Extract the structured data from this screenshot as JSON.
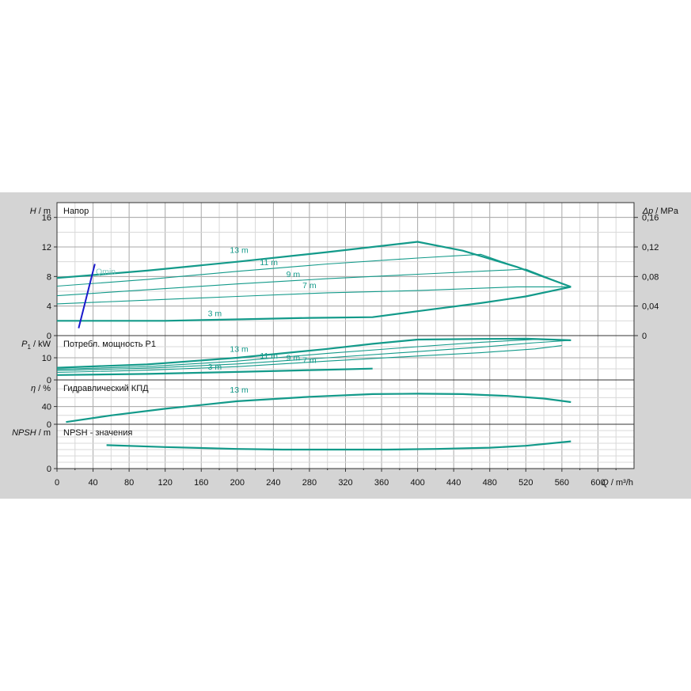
{
  "chart_data": {
    "type": "line",
    "x": {
      "label_italic": "Q",
      "label_unit": " / m³/h",
      "range": [
        0,
        640
      ],
      "ticks": [
        "0",
        "40",
        "80",
        "120",
        "160",
        "200",
        "240",
        "280",
        "320",
        "360",
        "400",
        "440",
        "480",
        "520",
        "560",
        "600"
      ]
    },
    "colors": {
      "curve": "#139a8a",
      "qmin": "#1a1acc",
      "grid": "#9a9a9a",
      "panel": "#d4d4d4",
      "plot": "#ffffff"
    },
    "panels": [
      {
        "id": "head",
        "title": "Напор",
        "ylabel_italic": "H",
        "ylabel_unit": " / m",
        "ylim": [
          0,
          18
        ],
        "ticks": [
          "0",
          "4",
          "8",
          "12",
          "16"
        ],
        "right_axis": {
          "label_italic": "Δp",
          "label_unit": " / MPa",
          "ticks": [
            "0",
            "0,04",
            "0,08",
            "0,12",
            "0,16"
          ]
        },
        "series": [
          {
            "name": "13 m",
            "weight": "bold",
            "label_at": [
              202,
              11.0
            ],
            "points": [
              [
                0,
                7.8
              ],
              [
                100,
                8.8
              ],
              [
                200,
                10.0
              ],
              [
                300,
                11.3
              ],
              [
                400,
                12.7
              ],
              [
                450,
                11.5
              ],
              [
                510,
                9.3
              ],
              [
                570,
                6.6
              ]
            ]
          },
          {
            "name": "11 m",
            "weight": "thin",
            "label_at": [
              235,
              9.3
            ],
            "points": [
              [
                0,
                6.7
              ],
              [
                100,
                7.6
              ],
              [
                200,
                8.7
              ],
              [
                300,
                9.7
              ],
              [
                400,
                10.5
              ],
              [
                470,
                11.0
              ],
              [
                510,
                9.3
              ],
              [
                570,
                6.6
              ]
            ]
          },
          {
            "name": "9 m",
            "weight": "thin",
            "label_at": [
              262,
              7.7
            ],
            "points": [
              [
                0,
                5.4
              ],
              [
                100,
                6.2
              ],
              [
                200,
                7.0
              ],
              [
                300,
                7.7
              ],
              [
                400,
                8.3
              ],
              [
                520,
                9.0
              ],
              [
                570,
                6.6
              ]
            ]
          },
          {
            "name": "7 m",
            "weight": "thin",
            "label_at": [
              280,
              6.2
            ],
            "points": [
              [
                0,
                4.3
              ],
              [
                100,
                4.8
              ],
              [
                200,
                5.3
              ],
              [
                300,
                5.8
              ],
              [
                400,
                6.1
              ],
              [
                510,
                6.6
              ],
              [
                570,
                6.6
              ]
            ]
          },
          {
            "name": "3 m",
            "weight": "bold",
            "label_at": [
              175,
              2.4
            ],
            "points": [
              [
                0,
                2.0
              ],
              [
                120,
                2.0
              ],
              [
                200,
                2.2
              ],
              [
                280,
                2.4
              ],
              [
                350,
                2.5
              ],
              [
                400,
                3.3
              ],
              [
                470,
                4.4
              ],
              [
                520,
                5.3
              ],
              [
                570,
                6.6
              ]
            ]
          }
        ],
        "qmin": {
          "label": "Qmin",
          "points": [
            [
              24,
              1.0
            ],
            [
              42,
              9.7
            ]
          ],
          "label_at": [
            43,
            8.3
          ]
        }
      },
      {
        "id": "power",
        "title": "Потребл. мощность P1",
        "ylabel_italic": "P",
        "ylabel_sub": "1",
        "ylabel_unit": " / kW",
        "ylim": [
          0,
          20
        ],
        "ticks": [
          "0",
          "10"
        ],
        "series": [
          {
            "name": "13 m",
            "weight": "bold",
            "label_at": [
              202,
              12.0
            ],
            "points": [
              [
                0,
                5.5
              ],
              [
                100,
                7.0
              ],
              [
                200,
                10.0
              ],
              [
                300,
                14.0
              ],
              [
                350,
                16.3
              ],
              [
                400,
                18.2
              ],
              [
                470,
                18.5
              ],
              [
                520,
                18.6
              ],
              [
                570,
                17.9
              ]
            ]
          },
          {
            "name": "11 m",
            "weight": "thin",
            "label_at": [
              235,
              9.0
            ],
            "points": [
              [
                0,
                4.8
              ],
              [
                100,
                6.0
              ],
              [
                200,
                8.5
              ],
              [
                300,
                12.0
              ],
              [
                400,
                15.0
              ],
              [
                470,
                17.0
              ],
              [
                530,
                18.3
              ],
              [
                570,
                17.9
              ]
            ]
          },
          {
            "name": "9 m",
            "weight": "thin",
            "label_at": [
              262,
              8.0
            ],
            "points": [
              [
                0,
                4.2
              ],
              [
                100,
                5.3
              ],
              [
                200,
                7.2
              ],
              [
                300,
                10.0
              ],
              [
                400,
                12.8
              ],
              [
                470,
                14.8
              ],
              [
                530,
                16.8
              ],
              [
                570,
                17.9
              ]
            ]
          },
          {
            "name": "7 m",
            "weight": "thin",
            "label_at": [
              280,
              7.0
            ],
            "points": [
              [
                0,
                3.4
              ],
              [
                100,
                4.4
              ],
              [
                200,
                6.0
              ],
              [
                300,
                8.5
              ],
              [
                400,
                10.8
              ],
              [
                470,
                12.3
              ],
              [
                530,
                14.0
              ],
              [
                560,
                15.5
              ]
            ]
          },
          {
            "name": "3 m",
            "weight": "bold",
            "label_at": [
              175,
              4.0
            ],
            "points": [
              [
                0,
                2.2
              ],
              [
                100,
                2.7
              ],
              [
                200,
                3.6
              ],
              [
                300,
                4.6
              ],
              [
                350,
                5.1
              ]
            ]
          }
        ]
      },
      {
        "id": "efficiency",
        "title": "Гидравлический КПД",
        "ylabel_italic": "η",
        "ylabel_unit": " / %",
        "ylim": [
          0,
          100
        ],
        "ticks": [
          "0",
          "40"
        ],
        "series": [
          {
            "name": "13 m",
            "weight": "bold",
            "label_at": [
              202,
              68
            ],
            "points": [
              [
                10,
                5
              ],
              [
                60,
                20
              ],
              [
                120,
                35
              ],
              [
                200,
                52
              ],
              [
                280,
                62
              ],
              [
                350,
                68
              ],
              [
                400,
                69
              ],
              [
                450,
                68
              ],
              [
                500,
                64
              ],
              [
                540,
                58
              ],
              [
                570,
                50
              ]
            ]
          }
        ]
      },
      {
        "id": "npsh",
        "title": "NPSH - значения",
        "ylabel_italic": "NPSH",
        "ylabel_unit": " / m",
        "ylim": [
          0,
          7
        ],
        "ticks": [
          "0"
        ],
        "series": [
          {
            "name": "",
            "weight": "bold",
            "points": [
              [
                55,
                3.7
              ],
              [
                120,
                3.4
              ],
              [
                200,
                3.1
              ],
              [
                250,
                3.0
              ],
              [
                300,
                3.0
              ],
              [
                365,
                3.0
              ],
              [
                420,
                3.1
              ],
              [
                480,
                3.3
              ],
              [
                520,
                3.6
              ],
              [
                570,
                4.3
              ]
            ]
          }
        ]
      }
    ]
  }
}
